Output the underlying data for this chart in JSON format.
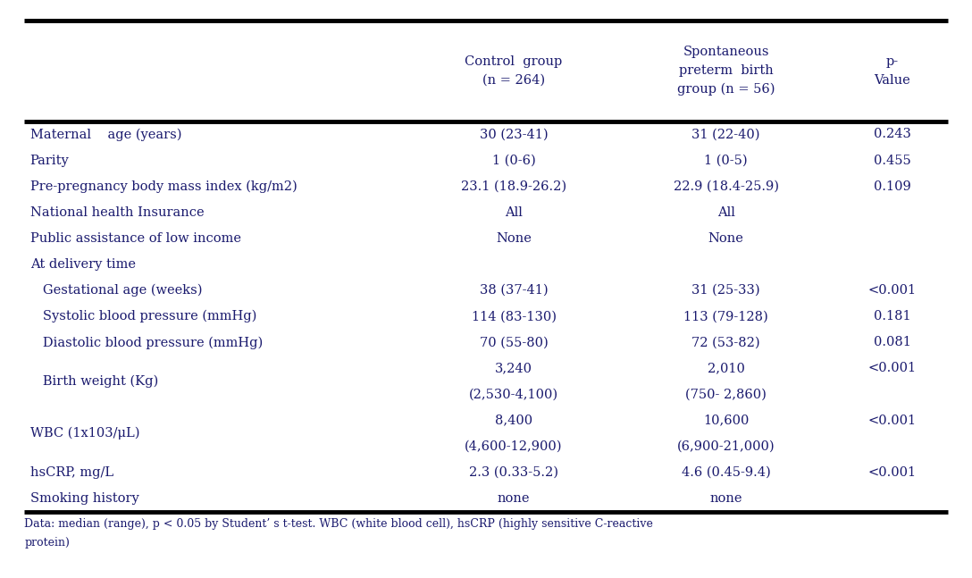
{
  "background_color": "#ffffff",
  "text_color": "#1a1a6e",
  "header": [
    "",
    "Control  group\n(n = 264)",
    "Spontaneous\npreterm  birth\ngroup (n = 56)",
    "p-\nValue"
  ],
  "rows": [
    [
      "Maternal    age (years)",
      "30 (23-41)",
      "31 (22-40)",
      "0.243"
    ],
    [
      "Parity",
      "1 (0-6)",
      "1 (0-5)",
      "0.455"
    ],
    [
      "Pre-pregnancy body mass index (kg/m2)",
      "23.1 (18.9-26.2)",
      "22.9 (18.4-25.9)",
      "0.109"
    ],
    [
      "National health Insurance",
      "All",
      "All",
      ""
    ],
    [
      "Public assistance of low income",
      "None",
      "None",
      ""
    ],
    [
      "At delivery time",
      "",
      "",
      ""
    ],
    [
      "   Gestational age (weeks)",
      "38 (37-41)",
      "31 (25-33)",
      "<0.001"
    ],
    [
      "   Systolic blood pressure (mmHg)",
      "114 (83-130)",
      "113 (79-128)",
      "0.181"
    ],
    [
      "   Diastolic blood pressure (mmHg)",
      "70 (55-80)",
      "72 (53-82)",
      "0.081"
    ],
    [
      "",
      "3,240",
      "2,010",
      "<0.001"
    ],
    [
      "   Birth weight (Kg)",
      "(2,530-4,100)",
      "(750- 2,860)",
      ""
    ],
    [
      "",
      "8,400",
      "10,600",
      "<0.001"
    ],
    [
      "WBC (1x103/μL)",
      "(4,600-12,900)",
      "(6,900-21,000)",
      ""
    ],
    [
      "hsCRP, mg/L",
      "2.3 (0.33-5.2)",
      "4.6 (0.45-9.4)",
      "<0.001"
    ],
    [
      "Smoking history",
      "none",
      "none",
      ""
    ]
  ],
  "footnote": "Data: median (range), p < 0.05 by Student’ s t-test. WBC (white blood cell), hsCRP (highly sensitive C-reactive\nprotein)",
  "figsize": [
    10.88,
    6.47
  ],
  "dpi": 100,
  "font_size": 10.5,
  "footnote_font_size": 9.0
}
